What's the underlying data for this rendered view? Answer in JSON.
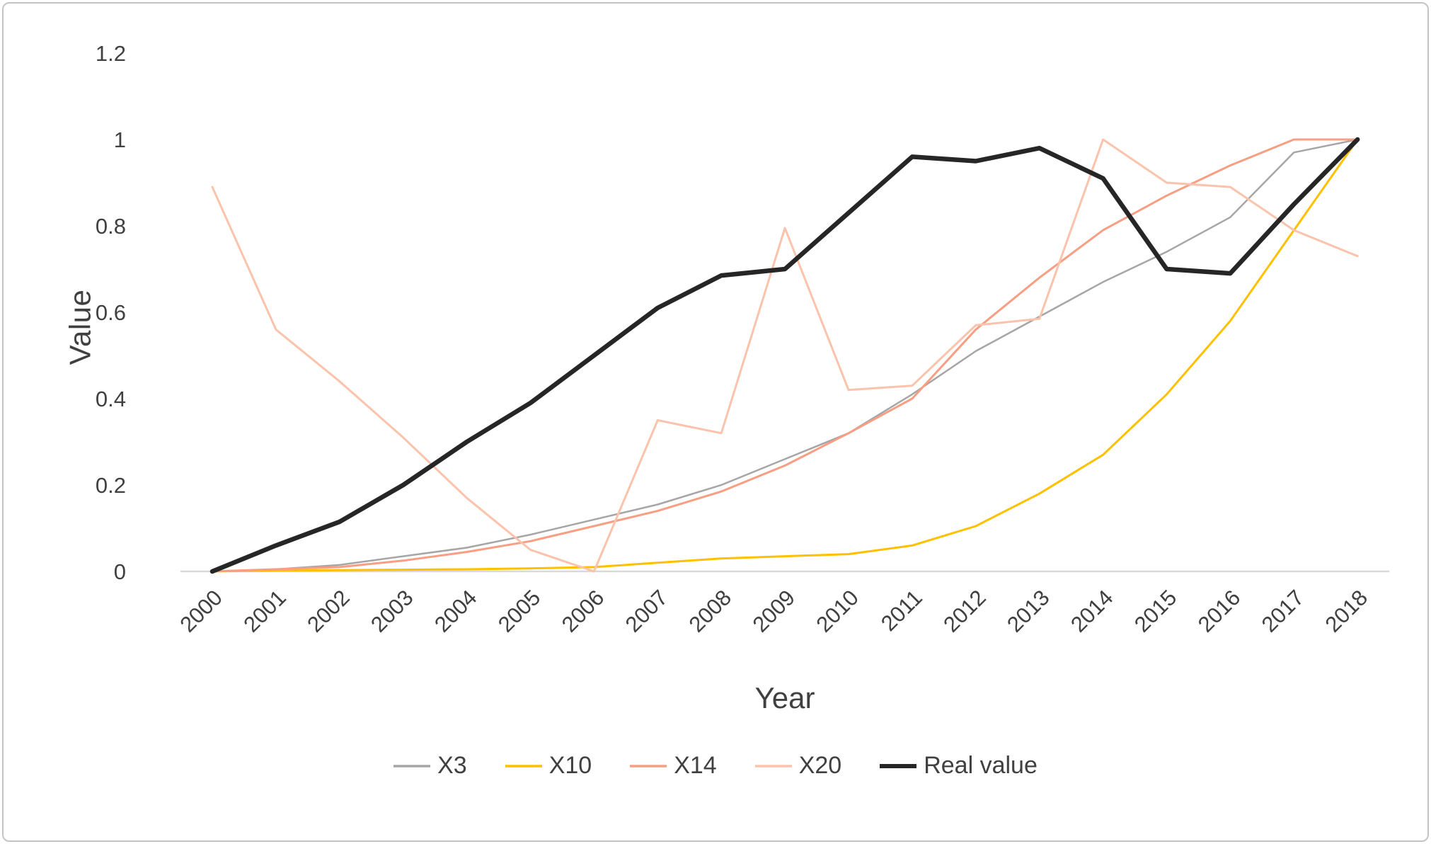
{
  "chart_data": {
    "type": "line",
    "title": "",
    "xlabel": "Year",
    "ylabel": "Value",
    "x": [
      "2000",
      "2001",
      "2002",
      "2003",
      "2004",
      "2005",
      "2006",
      "2007",
      "2008",
      "2009",
      "2010",
      "2011",
      "2012",
      "2013",
      "2014",
      "2015",
      "2016",
      "2017",
      "2018"
    ],
    "ylim": [
      0,
      1.2
    ],
    "yticks": [
      0,
      0.2,
      0.4,
      0.6,
      0.8,
      1,
      1.2
    ],
    "ytick_labels": [
      "0",
      "0.2",
      "0.4",
      "0.6",
      "0.8",
      "1",
      "1.2"
    ],
    "grid": "none",
    "legend_position": "bottom",
    "axis_text_color": "#404040",
    "axis_line_color": "#d9d9d9",
    "series": [
      {
        "name": "X3",
        "color": "#a6a6a6",
        "width": 2.5,
        "values": [
          0,
          0.005,
          0.015,
          0.035,
          0.055,
          0.085,
          0.12,
          0.155,
          0.2,
          0.26,
          0.32,
          0.41,
          0.51,
          0.59,
          0.67,
          0.74,
          0.82,
          0.97,
          1
        ]
      },
      {
        "name": "X10",
        "color": "#ffc000",
        "width": 3,
        "values": [
          0,
          0.002,
          0.003,
          0.004,
          0.005,
          0.007,
          0.01,
          0.02,
          0.03,
          0.035,
          0.04,
          0.06,
          0.105,
          0.18,
          0.27,
          0.41,
          0.58,
          0.79,
          1
        ]
      },
      {
        "name": "X14",
        "color": "#f89e83",
        "width": 3,
        "values": [
          0,
          0.005,
          0.01,
          0.025,
          0.045,
          0.07,
          0.105,
          0.14,
          0.185,
          0.245,
          0.32,
          0.4,
          0.56,
          0.68,
          0.79,
          0.87,
          0.94,
          1,
          1
        ]
      },
      {
        "name": "X20",
        "color": "#fbc3ab",
        "width": 3,
        "values": [
          0.89,
          0.56,
          0.44,
          0.31,
          0.17,
          0.05,
          0,
          0.35,
          0.32,
          0.795,
          0.42,
          0.43,
          0.57,
          0.585,
          1,
          0.9,
          0.89,
          0.79,
          0.73
        ]
      },
      {
        "name": "Real value",
        "color": "#262626",
        "width": 6.5,
        "values": [
          0,
          0.06,
          0.115,
          0.2,
          0.3,
          0.39,
          0.5,
          0.61,
          0.685,
          0.7,
          0.83,
          0.96,
          0.95,
          0.98,
          0.91,
          0.7,
          0.69,
          0.85,
          1
        ]
      }
    ]
  }
}
